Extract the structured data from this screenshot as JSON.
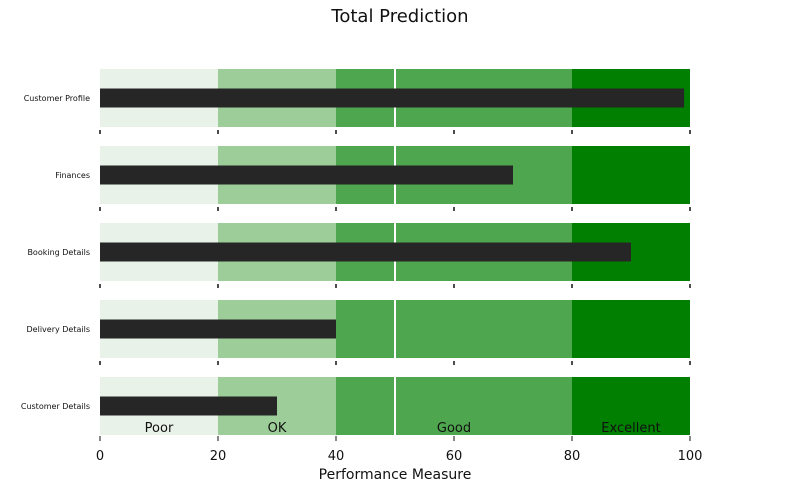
{
  "chart_data": {
    "type": "bar",
    "title": "Total Prediction",
    "xlabel": "Performance Measure",
    "ylabel": "",
    "xlim": [
      0,
      100
    ],
    "xticks": [
      0,
      20,
      40,
      60,
      80,
      100
    ],
    "categories": [
      "Customer Profile",
      "Finances",
      "Booking Details",
      "Delivery Details",
      "Customer Details"
    ],
    "values": [
      99,
      70,
      90,
      40,
      30
    ],
    "target": 50,
    "ranges": [
      {
        "label": "Poor",
        "from": 0,
        "to": 20,
        "color": "#e9f2e8"
      },
      {
        "label": "OK",
        "from": 20,
        "to": 40,
        "color": "#9dce9a"
      },
      {
        "label": "Good",
        "from": 40,
        "to": 80,
        "color": "#4ea64e"
      },
      {
        "label": "Excellent",
        "from": 80,
        "to": 100,
        "color": "#007f00"
      }
    ],
    "bar_color": "#262626",
    "target_color": "#ffffff",
    "grid": false,
    "legend": "none"
  }
}
